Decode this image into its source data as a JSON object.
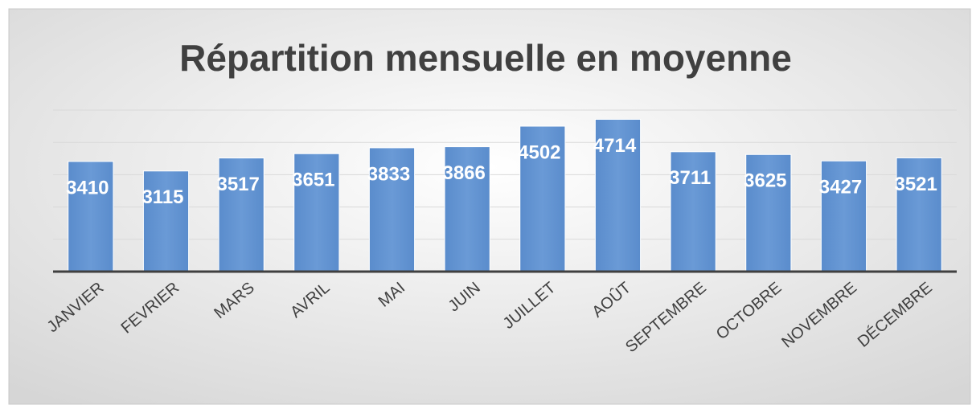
{
  "chart_data": {
    "type": "bar",
    "title": "Répartition mensuelle en moyenne",
    "categories": [
      "JANVIER",
      "FEVRIER",
      "MARS",
      "AVRIL",
      "MAI",
      "JUIN",
      "JUILLET",
      "AOÛT",
      "SEPTEMBRE",
      "OCTOBRE",
      "NOVEMBRE",
      "DÉCEMBRE"
    ],
    "values": [
      3410,
      3115,
      3517,
      3651,
      3833,
      3866,
      4502,
      4714,
      3711,
      3625,
      3427,
      3521
    ],
    "color": "#5b8fd0",
    "ylim": [
      0,
      5000
    ],
    "yticks": [
      0,
      1000,
      2000,
      3000,
      4000,
      5000
    ],
    "grid": true
  }
}
